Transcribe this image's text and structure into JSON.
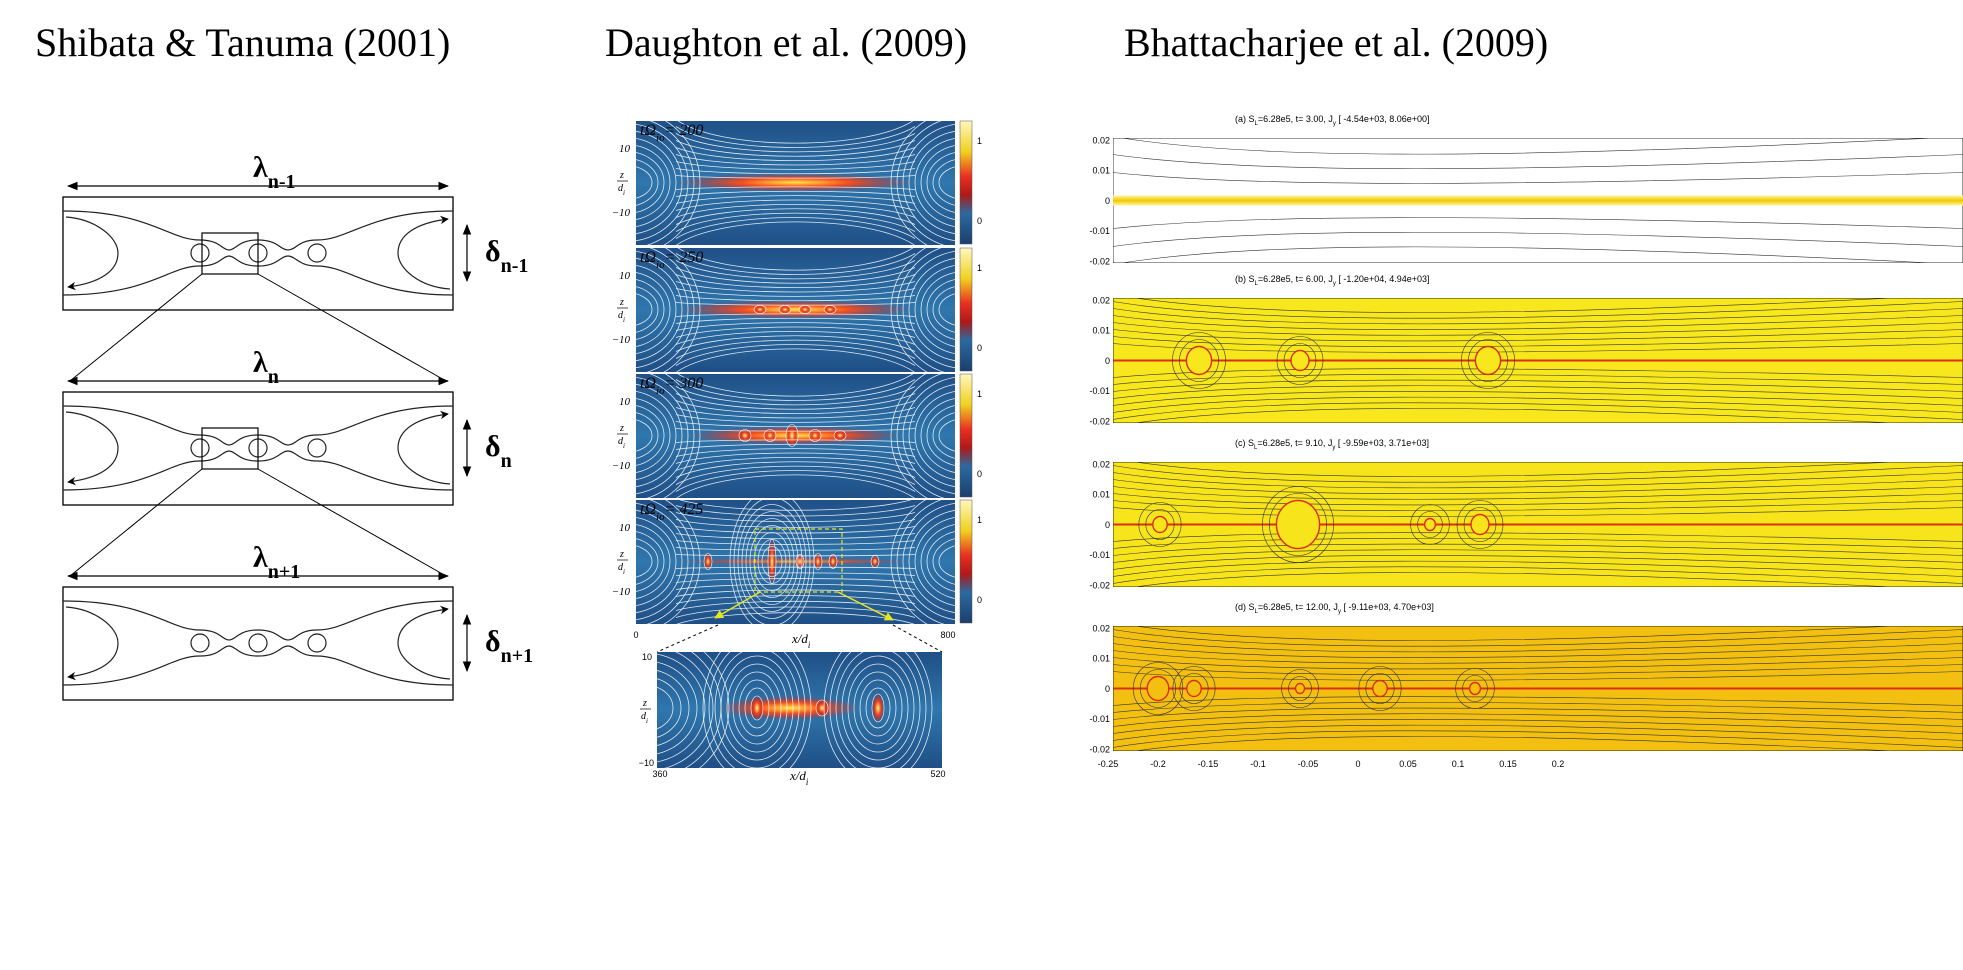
{
  "headers": {
    "left": "Shibata & Tanuma (2001)",
    "middle": "Daughton et al. (2009)",
    "right": "Bhattacharjee et al. (2009)"
  },
  "shibata": {
    "levels": [
      {
        "lambda": "λ",
        "lambda_sub": "n-1",
        "delta": "δ",
        "delta_sub": "n-1"
      },
      {
        "lambda": "λ",
        "lambda_sub": "n",
        "delta": "δ",
        "delta_sub": "n"
      },
      {
        "lambda": "λ",
        "lambda_sub": "n+1",
        "delta": "δ",
        "delta_sub": "n+1"
      }
    ]
  },
  "daughton": {
    "panels": [
      {
        "time": "tΩ",
        "time_sub": "io",
        "time_value": "= 200"
      },
      {
        "time": "tΩ",
        "time_sub": "io",
        "time_value": "= 250"
      },
      {
        "time": "tΩ",
        "time_sub": "io",
        "time_value": "= 300"
      },
      {
        "time": "tΩ",
        "time_sub": "io",
        "time_value": "= 425"
      }
    ],
    "y_ticks": [
      "10",
      "−10"
    ],
    "y_label": {
      "num": "z",
      "den": "d",
      "den_sub": "i"
    },
    "colorbar_ticks": [
      "1",
      "0"
    ],
    "x_ticks": [
      "0",
      "800"
    ],
    "x_label": {
      "num": "x/d",
      "sub": "i"
    },
    "inset": {
      "y_ticks": [
        "10",
        "−10"
      ],
      "x_ticks": [
        "360",
        "520"
      ]
    }
  },
  "bhattacharjee": {
    "panels": [
      {
        "title": [
          "(a) S",
          "L",
          "=6.28e5, t=  3.00, J",
          "y",
          " [ -4.54e+03,  8.06e+00]"
        ]
      },
      {
        "title": [
          "(b) S",
          "L",
          "=6.28e5, t=  6.00, J",
          "y",
          " [ -1.20e+04,  4.94e+03]"
        ]
      },
      {
        "title": [
          "(c) S",
          "L",
          "=6.28e5, t=  9.10, J",
          "y",
          " [ -9.59e+03,  3.71e+03]"
        ]
      },
      {
        "title": [
          "(d) S",
          "L",
          "=6.28e5, t= 12.00, J",
          "y",
          " [ -9.11e+03,  4.70e+03]"
        ]
      }
    ],
    "y_ticks": [
      "0.02",
      "0.01",
      "0",
      "-0.01",
      "-0.02"
    ],
    "x_ticks": [
      "-0.25",
      "-0.2",
      "-0.15",
      "-0.1",
      "-0.05",
      "0",
      "0.05",
      "0.1",
      "0.15",
      "0.2"
    ]
  }
}
